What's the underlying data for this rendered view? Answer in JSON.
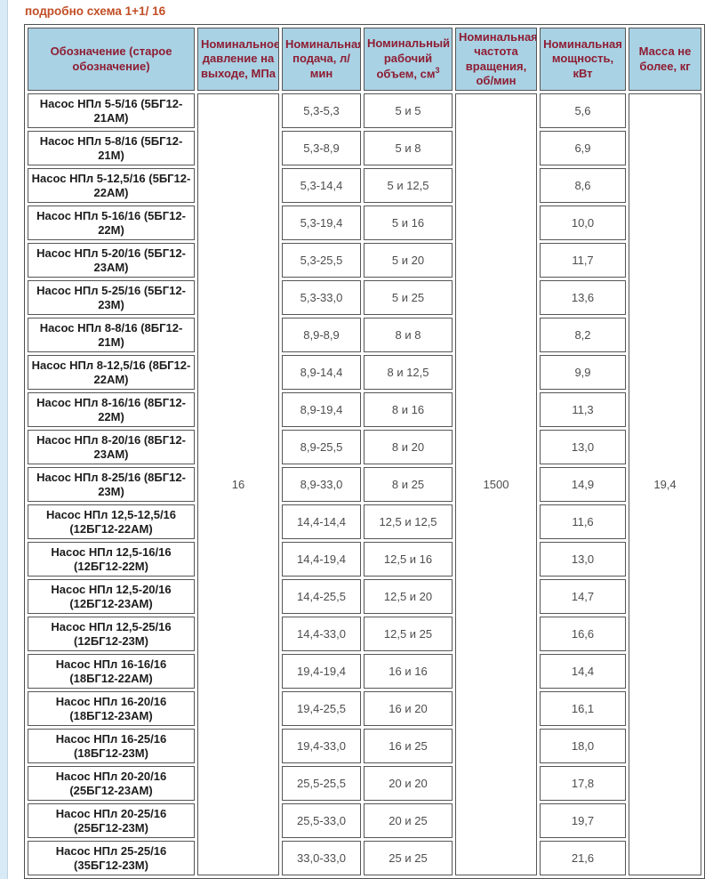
{
  "page": {
    "title": "подробно схема 1+1/ 16"
  },
  "theme": {
    "title_color": "#c24e26",
    "header_bg": "#a9d2e4",
    "header_text": "#8e1d33",
    "border_color": "#565656",
    "strip_color": "#d8eaf5"
  },
  "table": {
    "headers": [
      {
        "text": "Обозначение (старое обозначение)"
      },
      {
        "text": "Номинальное давление на выходе, МПа"
      },
      {
        "text": "Номинальная подача, л/ мин"
      },
      {
        "text": "Номинальный рабочий объем, см",
        "sup": "3"
      },
      {
        "text": "Номинальная частота вращения, об/мин"
      },
      {
        "text": "Номинальная мощность, кВт"
      },
      {
        "text": "Масса не более, кг"
      }
    ],
    "shared": {
      "pressure_mpa": "16",
      "speed_rpm": "1500",
      "mass_kg": "19,4"
    },
    "rows": [
      {
        "name": "Насос НПл 5-5/16 (5БГ12-21АМ)",
        "flow": "5,3-5,3",
        "volume": "5 и 5",
        "power": "5,6"
      },
      {
        "name": "Насос НПл 5-8/16 (5БГ12-21М)",
        "flow": "5,3-8,9",
        "volume": "5 и 8",
        "power": "6,9"
      },
      {
        "name": "Насос НПл 5-12,5/16 (5БГ12-22АМ)",
        "flow": "5,3-14,4",
        "volume": "5 и 12,5",
        "power": "8,6"
      },
      {
        "name": "Насос НПл 5-16/16 (5БГ12-22М)",
        "flow": "5,3-19,4",
        "volume": "5 и 16",
        "power": "10,0"
      },
      {
        "name": "Насос НПл 5-20/16 (5БГ12-23АМ)",
        "flow": "5,3-25,5",
        "volume": "5 и 20",
        "power": "11,7"
      },
      {
        "name": "Насос НПл 5-25/16 (5БГ12-23М)",
        "flow": "5,3-33,0",
        "volume": "5 и 25",
        "power": "13,6"
      },
      {
        "name": "Насос НПл 8-8/16 (8БГ12-21М)",
        "flow": "8,9-8,9",
        "volume": "8 и 8",
        "power": "8,2"
      },
      {
        "name": "Насос НПл 8-12,5/16 (8БГ12-22АМ)",
        "flow": "8,9-14,4",
        "volume": "8 и 12,5",
        "power": "9,9"
      },
      {
        "name": "Насос НПл 8-16/16 (8БГ12-22М)",
        "flow": "8,9-19,4",
        "volume": "8 и 16",
        "power": "11,3"
      },
      {
        "name": "Насос НПл 8-20/16 (8БГ12-23АМ)",
        "flow": "8,9-25,5",
        "volume": "8 и 20",
        "power": "13,0"
      },
      {
        "name": "Насос НПл 8-25/16 (8БГ12-23М)",
        "flow": "8,9-33,0",
        "volume": "8 и 25",
        "power": "14,9"
      },
      {
        "name": "Насос НПл 12,5-12,5/16 (12БГ12-22АМ)",
        "flow": "14,4-14,4",
        "volume": "12,5 и 12,5",
        "power": "11,6"
      },
      {
        "name": "Насос НПл 12,5-16/16 (12БГ12-22М)",
        "flow": "14,4-19,4",
        "volume": "12,5 и 16",
        "power": "13,0"
      },
      {
        "name": "Насос НПл 12,5-20/16 (12БГ12-23АМ)",
        "flow": "14,4-25,5",
        "volume": "12,5 и 20",
        "power": "14,7"
      },
      {
        "name": "Насос НПл 12,5-25/16 (12БГ12-23М)",
        "flow": "14,4-33,0",
        "volume": "12,5 и 25",
        "power": "16,6"
      },
      {
        "name": "Насос НПл 16-16/16 (18БГ12-22АМ)",
        "flow": "19,4-19,4",
        "volume": "16 и 16",
        "power": "14,4"
      },
      {
        "name": "Насос НПл 16-20/16 (18БГ12-23АМ)",
        "flow": "19,4-25,5",
        "volume": "16 и 20",
        "power": "16,1"
      },
      {
        "name": "Насос НПл 16-25/16 (18БГ12-23М)",
        "flow": "19,4-33,0",
        "volume": "16 и 25",
        "power": "18,0"
      },
      {
        "name": "Насос НПл 20-20/16 (25БГ12-23АМ)",
        "flow": "25,5-25,5",
        "volume": "20 и 20",
        "power": "17,8"
      },
      {
        "name": "Насос НПл 20-25/16 (25БГ12-23М)",
        "flow": "25,5-33,0",
        "volume": "20 и 25",
        "power": "19,7"
      },
      {
        "name": "Насос НПл 25-25/16 (35БГ12-23М)",
        "flow": "33,0-33,0",
        "volume": "25 и 25",
        "power": "21,6"
      }
    ]
  }
}
